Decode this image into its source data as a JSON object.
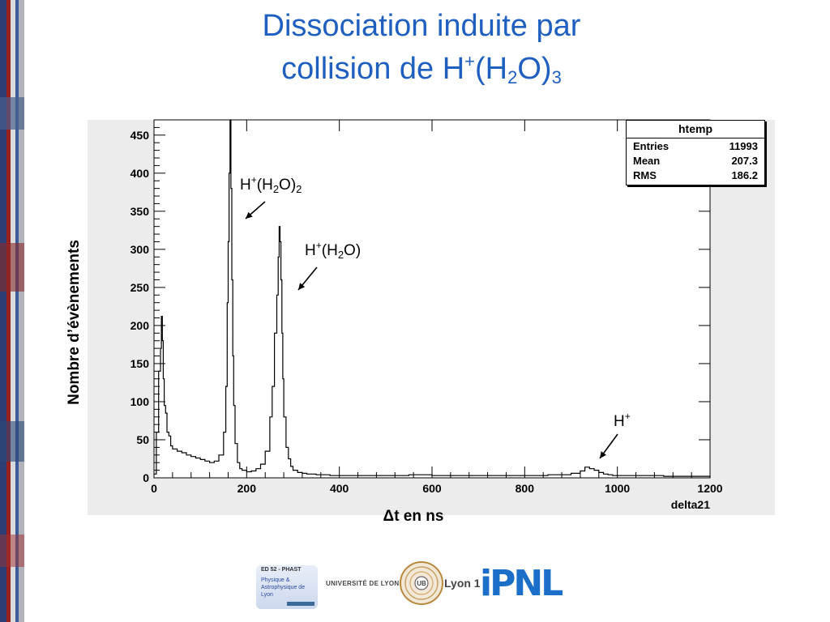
{
  "slide": {
    "title_line1": "Dissociation induite par",
    "title_line2_prefix": "collision de H",
    "title_sup": "+",
    "title_paren_open": "(H",
    "title_sub2": "2",
    "title_o_close": "O)",
    "title_sub3": "3",
    "accent_color": "#1f5fc0"
  },
  "stats_box": {
    "title": "htemp",
    "rows": [
      {
        "label": "Entries",
        "value": "11993"
      },
      {
        "label": "Mean",
        "value": "207.3"
      },
      {
        "label": "RMS",
        "value": "186.2"
      }
    ]
  },
  "annotations": {
    "peak1": {
      "base": "H",
      "sup": "+",
      "mid": "(H",
      "sub": "2",
      "end": "O)",
      "sub2": "2"
    },
    "peak2": {
      "base": "H",
      "sup": "+",
      "mid": "(H",
      "sub": "2",
      "end": "O)"
    },
    "peak3": {
      "base": "H",
      "sup": "+"
    }
  },
  "logos": {
    "phast_name": "ED 52 - PHAST",
    "phast_text": "Physique & Astrophysique de Lyon",
    "udl_text": "UNIVERSITÉ DE LYON",
    "lyon1_text": "Lyon 1",
    "lyon1_badge": "UB",
    "ipnl_text": "iPNL"
  },
  "chart_data": {
    "type": "line",
    "xlabel": "Δt en ns",
    "ylabel": "Nombre d’évènements",
    "axis_name": "delta21",
    "xlim": [
      0,
      1200
    ],
    "ylim": [
      0,
      470
    ],
    "x_ticks": [
      "0",
      "200",
      "400",
      "600",
      "800",
      "1000",
      "1200"
    ],
    "y_ticks": [
      "0",
      "50",
      "100",
      "150",
      "200",
      "250",
      "300",
      "350",
      "400",
      "450"
    ],
    "series": [
      {
        "x": [
          0,
          5,
          10,
          14,
          16,
          18,
          20,
          22,
          25,
          28,
          32,
          36,
          40,
          50,
          60,
          70,
          80,
          90,
          100,
          110,
          120,
          130,
          140,
          150,
          155,
          158,
          160,
          162,
          164,
          166,
          168,
          170,
          172,
          175,
          180,
          185,
          190,
          200,
          210,
          220,
          230,
          240,
          250,
          255,
          260,
          265,
          268,
          270,
          272,
          274,
          276,
          278,
          280,
          285,
          290,
          295,
          300,
          310,
          320,
          330,
          350,
          380,
          420,
          460,
          500,
          550,
          600,
          650,
          700,
          750,
          800,
          850,
          900,
          920,
          930,
          940,
          950,
          960,
          970,
          980,
          990,
          1000,
          1050,
          1100,
          1150,
          1200
        ],
        "values": [
          5,
          60,
          140,
          170,
          212,
          180,
          130,
          95,
          85,
          60,
          55,
          42,
          38,
          35,
          33,
          30,
          28,
          26,
          24,
          22,
          20,
          22,
          30,
          60,
          120,
          230,
          310,
          400,
          470,
          380,
          260,
          160,
          95,
          45,
          20,
          12,
          10,
          8,
          9,
          12,
          18,
          35,
          80,
          120,
          190,
          240,
          290,
          330,
          310,
          260,
          190,
          130,
          80,
          40,
          25,
          15,
          10,
          7,
          6,
          5,
          4,
          3,
          3,
          3,
          3,
          4,
          3,
          3,
          3,
          3,
          3,
          4,
          6,
          9,
          14,
          12,
          10,
          7,
          5,
          4,
          3,
          3,
          3,
          2,
          2,
          0
        ]
      }
    ]
  }
}
